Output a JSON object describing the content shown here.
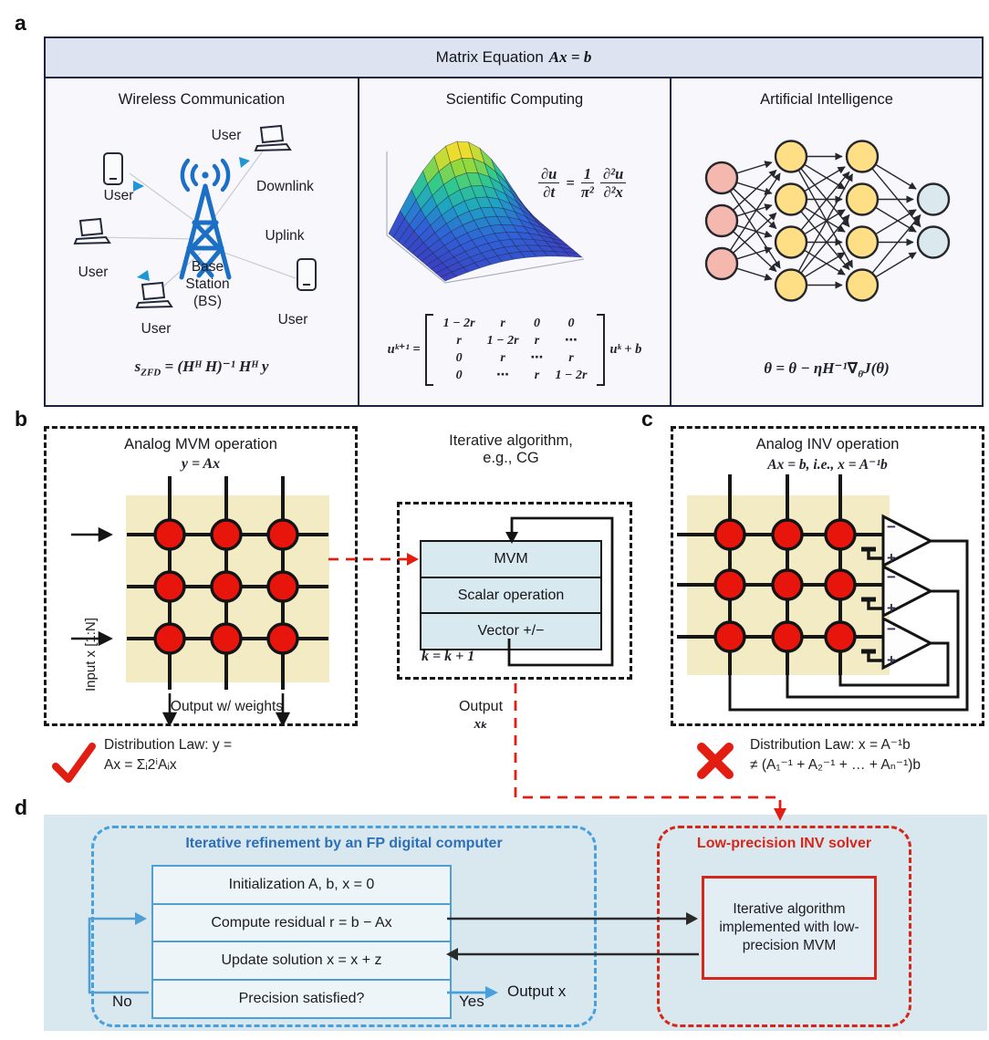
{
  "labels": {
    "a": "a",
    "b": "b",
    "c": "c",
    "d": "d"
  },
  "colors": {
    "accent_red": "#e21d12",
    "accent_blue": "#47a0dd",
    "blue_title": "#2d6fb8",
    "red_title": "#d6261a",
    "crossbar_beige": "#f3ebc4",
    "device_red": "#e8150d",
    "op_box_blue": "#d9e9f0",
    "panel_d_bg": "#d9e8ef",
    "header_bg": "#dde3f1",
    "base_station_blue": "#1b6fc4"
  },
  "panel_a": {
    "header_prefix": "Matrix Equation",
    "header_equation": "Ax = b",
    "wireless": {
      "title": "Wireless Communication",
      "users": [
        "User",
        "User",
        "User",
        "User",
        "User"
      ],
      "downlink": "Downlink",
      "uplink": "Uplink",
      "base_station": [
        "Base",
        "Station",
        "(BS)"
      ],
      "formula": {
        "s": "s",
        "sub": "ZFD",
        "rest": " = (Hᴴ H)⁻¹ Hᴴ y"
      }
    },
    "scientific": {
      "title": "Scientific Computing",
      "pde": {
        "n1": "∂u",
        "d1": "∂t",
        "eq": "=",
        "n2": "1",
        "d2": "π²",
        "n3": "∂²u",
        "d3": "∂²x"
      },
      "matrix_lhs": "uᵏ⁺¹ =",
      "matrix": [
        [
          "1 − 2r",
          "r",
          "0",
          "0"
        ],
        [
          "r",
          "1 − 2r",
          "r",
          "⋯"
        ],
        [
          "0",
          "r",
          "⋯",
          "r"
        ],
        [
          "0",
          "⋯",
          "r",
          "1 − 2r"
        ]
      ],
      "matrix_rhs": "uᵏ + b"
    },
    "ai": {
      "title": "Artificial Intelligence",
      "formula": {
        "pre": "θ = θ − ηH⁻¹∇",
        "sub": "θ",
        "post": "J(θ)"
      },
      "nn_layers": [
        3,
        4,
        4,
        2
      ],
      "nn_colors": [
        "#f5b8ae",
        "#ffdf86",
        "#ffdf86",
        "#d9e9ee"
      ]
    }
  },
  "panel_b": {
    "title": "Analog MVM operation",
    "subtitle": "y = Ax",
    "input_label": "Input x [1:N]",
    "output_label": "Output w/ weights",
    "law_line1": "Distribution Law: y =",
    "law_line2": "Ax = Σᵢ2ⁱAᵢx"
  },
  "middle": {
    "title_line1": "Iterative algorithm,",
    "title_line2": "e.g., CG",
    "steps": [
      "MVM",
      "Scalar operation",
      "Vector +/−"
    ],
    "counter": "k = k + 1",
    "output_line1": "Output",
    "output_line2": "xₖ"
  },
  "panel_c": {
    "title": "Analog INV operation",
    "subtitle": "Ax = b, i.e., x = A⁻¹b",
    "law_line1": "Distribution Law: x = A⁻¹b",
    "law_line2": "≠ (A₁⁻¹ + A₂⁻¹ + … + Aₙ⁻¹)b"
  },
  "panel_d": {
    "left_title": "Iterative refinement by an FP digital computer",
    "steps": [
      "Initialization A, b, x = 0",
      "Compute residual r = b − Ax",
      "Update solution x = x + z",
      "Precision satisfied?"
    ],
    "no_label": "No",
    "yes_label": "Yes",
    "output_label": "Output x",
    "right_title": "Low-precision INV solver",
    "solver_box": "Iterative algorithm implemented with low-precision MVM"
  }
}
